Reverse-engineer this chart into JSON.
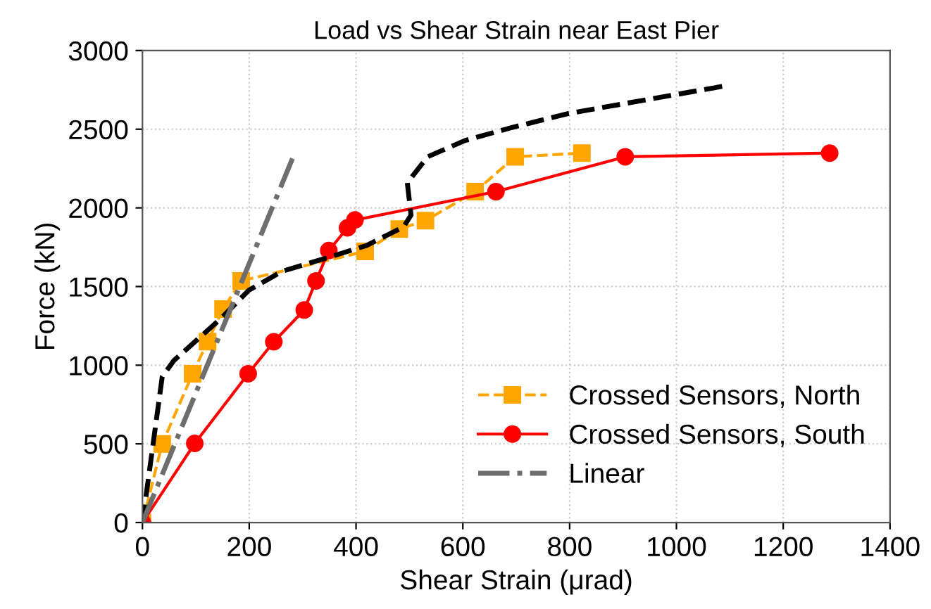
{
  "chart_data": {
    "type": "line",
    "title": "Load vs Shear Strain near East Pier",
    "xlabel": "Shear Strain (μrad)",
    "ylabel": "Force (kN)",
    "xlim": [
      0,
      1400
    ],
    "xticks": [
      0,
      200,
      400,
      600,
      800,
      1000,
      1200,
      1400
    ],
    "ylim": [
      0,
      3000
    ],
    "yticks": [
      0,
      500,
      1000,
      1500,
      2000,
      2500,
      3000
    ],
    "grid": true,
    "legend": "bottom right",
    "series": [
      {
        "name": "Crossed Sensors, North",
        "color": "#ffa500",
        "marker": "square",
        "line_style": "dashed",
        "x": [
          0,
          37,
          94,
          122,
          151,
          185,
          417,
          481,
          530,
          623,
          698,
          823
        ],
        "values": [
          0,
          500,
          946,
          1150,
          1357,
          1536,
          1723,
          1865,
          1919,
          2103,
          2325,
          2348
        ]
      },
      {
        "name": "Crossed Sensors, South",
        "color": "#ff0000",
        "marker": "circle",
        "line_style": "solid",
        "x": [
          0,
          98,
          198,
          246,
          303,
          325,
          349,
          384,
          398,
          662,
          904,
          1287
        ],
        "values": [
          0,
          503,
          946,
          1149,
          1351,
          1536,
          1729,
          1873,
          1923,
          2103,
          2325,
          2348
        ]
      },
      {
        "color": "#000000",
        "marker": "none",
        "line_style": "dashed",
        "x": [
          0,
          20,
          37,
          59,
          147,
          199,
          261,
          349,
          419,
          489,
          503,
          496,
          534,
          604,
          692,
          798,
          1087
        ],
        "values": [
          0,
          500,
          926,
          1030,
          1297,
          1476,
          1596,
          1686,
          1760,
          1879,
          1954,
          2160,
          2325,
          2428,
          2511,
          2600,
          2773
        ]
      },
      {
        "name": "Linear",
        "color": "#6e6e6e",
        "marker": "none",
        "line_style": "dashdot",
        "x": [
          0,
          286
        ],
        "values": [
          0,
          2355
        ]
      }
    ]
  }
}
